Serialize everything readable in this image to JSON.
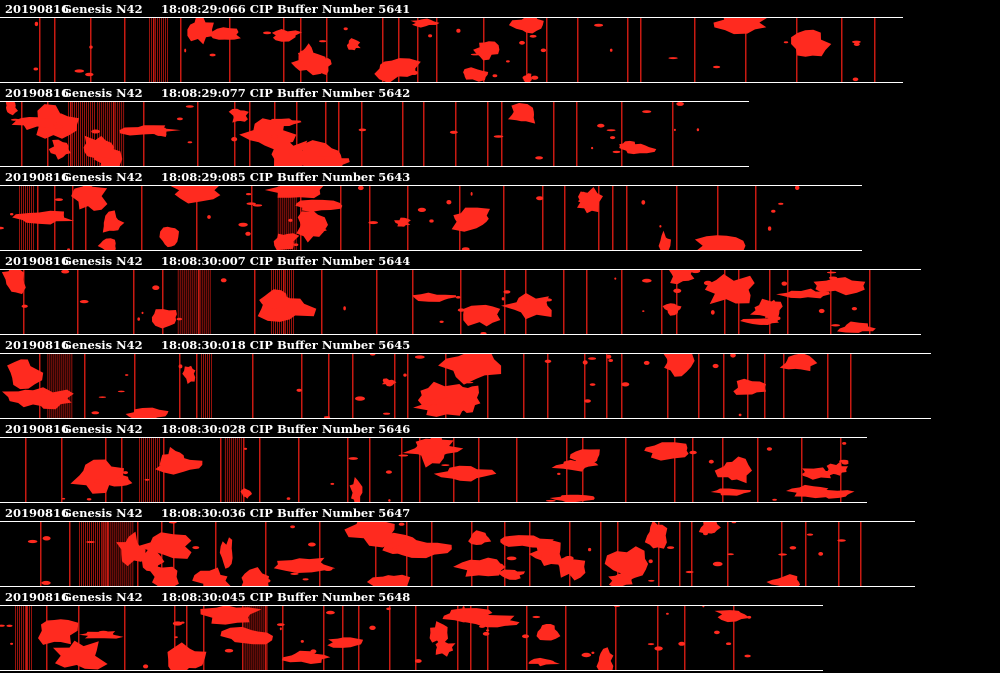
{
  "strips": [
    {
      "date": "20190816",
      "probe": "Genesis N42",
      "time_label": "18:08:29:066 CIP Buffer Number 5641",
      "seed": 5641
    },
    {
      "date": "20190816",
      "probe": "Genesis N42",
      "time_label": "18:08:29:077 CIP Buffer Number 5642",
      "seed": 5642
    },
    {
      "date": "20190816",
      "probe": "Genesis N42",
      "time_label": "18:08:29:085 CIP Buffer Number 5643",
      "seed": 5643
    },
    {
      "date": "20190816",
      "probe": "Genesis N42",
      "time_label": "18:08:30:007 CIP Buffer Number 5644",
      "seed": 5644
    },
    {
      "date": "20190816",
      "probe": "Genesis N42",
      "time_label": "18:08:30:018 CIP Buffer Number 5645",
      "seed": 5645
    },
    {
      "date": "20190816",
      "probe": "Genesis N42",
      "time_label": "18:08:30:028 CIP Buffer Number 5646",
      "seed": 5646
    },
    {
      "date": "20190816",
      "probe": "Genesis N42",
      "time_label": "18:08:30:036 CIP Buffer Number 5647",
      "seed": 5647
    },
    {
      "date": "20190816",
      "probe": "Genesis N42",
      "time_label": "18:08:30:045 CIP Buffer Number 5648",
      "seed": 5648
    }
  ],
  "colors": {
    "background": "#000000",
    "text": "#ffffff",
    "particle": "#ff2a1f",
    "separator": "#c81a12"
  }
}
